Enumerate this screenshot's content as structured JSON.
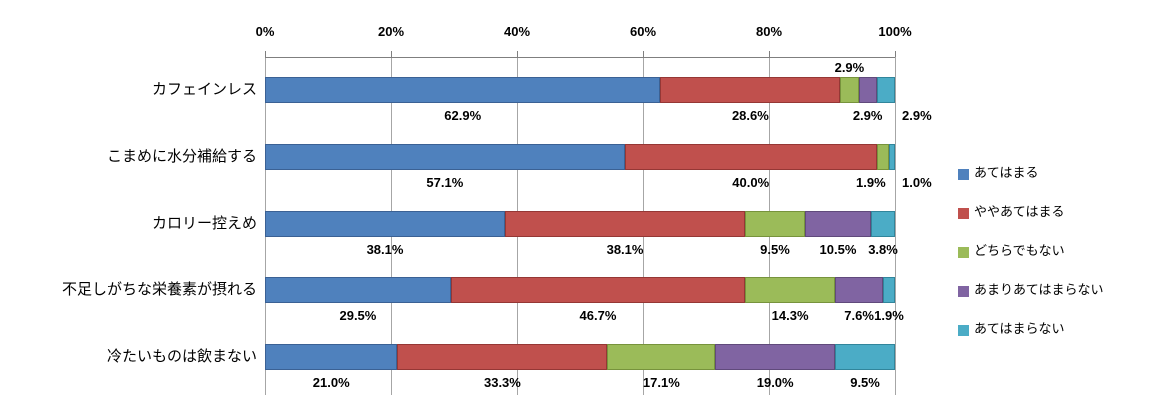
{
  "chart_data": {
    "type": "bar",
    "variant": "horizontal-stacked",
    "title": "",
    "xlabel": "",
    "ylabel": "",
    "xlim": [
      0,
      100
    ],
    "grid": true,
    "legend_position": "right",
    "x_ticks": [
      "0%",
      "20%",
      "40%",
      "60%",
      "80%",
      "100%"
    ],
    "categories": [
      "カフェインレス",
      "こまめに水分補給する",
      "カロリー控えめ",
      "不足しがちな栄養素が摂れる",
      "冷たいものは飲まない"
    ],
    "series": [
      {
        "name": "あてはまる",
        "color": "#4F81BD",
        "border": "#3B6194",
        "values": [
          62.9,
          57.1,
          38.1,
          29.5,
          21.0
        ]
      },
      {
        "name": "ややあてはまる",
        "color": "#C0504D",
        "border": "#953735",
        "values": [
          28.6,
          40.0,
          38.1,
          46.7,
          33.3
        ]
      },
      {
        "name": "どちらでもない",
        "color": "#9BBB59",
        "border": "#77933C",
        "values": [
          2.9,
          1.9,
          9.5,
          14.3,
          17.1
        ]
      },
      {
        "name": "あまりあてはまらない",
        "color": "#8064A2",
        "border": "#604A7B",
        "values": [
          2.9,
          0.0,
          10.5,
          7.6,
          19.0
        ]
      },
      {
        "name": "あてはまらない",
        "color": "#4BACC6",
        "border": "#31859B",
        "values": [
          2.9,
          1.0,
          3.8,
          1.9,
          9.5
        ]
      }
    ],
    "label_format": "one-decimal-percent",
    "label_placements": {
      "2-0": "above",
      "3-0": "center",
      "4-0": "outside",
      "2-1": "end",
      "4-1": "outside"
    },
    "colors": {
      "gridline": "#a6a6a6",
      "axis_line": "#7f7f7f",
      "label_text": "#000000",
      "background": "#ffffff"
    }
  }
}
